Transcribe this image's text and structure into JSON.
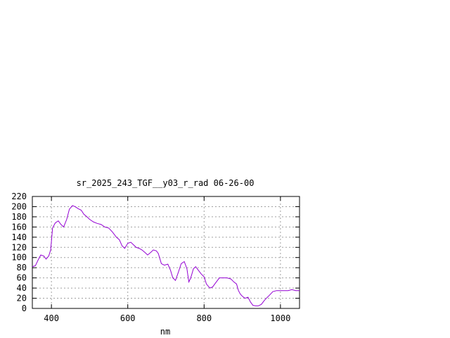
{
  "chart_data": {
    "type": "line",
    "title": "sr_2025_243_TGF__y03_r_rad 06-26-00",
    "xlabel": "nm",
    "ylabel": "",
    "xlim": [
      350,
      1050
    ],
    "ylim": [
      0,
      220
    ],
    "x_ticks": [
      400,
      600,
      800,
      1000
    ],
    "y_ticks": [
      0,
      20,
      40,
      60,
      80,
      100,
      120,
      140,
      160,
      180,
      200,
      220
    ],
    "grid": true,
    "legend": "none",
    "series": [
      {
        "color": "#9400d3",
        "x": [
          350,
          358,
          365,
          372,
          380,
          386,
          393,
          398,
          403,
          410,
          418,
          425,
          432,
          440,
          447,
          455,
          462,
          470,
          478,
          485,
          493,
          500,
          510,
          520,
          530,
          540,
          550,
          560,
          570,
          578,
          585,
          592,
          600,
          608,
          615,
          622,
          630,
          637,
          645,
          652,
          660,
          667,
          675,
          680,
          688,
          696,
          705,
          712,
          718,
          725,
          732,
          740,
          748,
          755,
          760,
          765,
          772,
          778,
          785,
          792,
          800,
          806,
          815,
          822,
          830,
          840,
          850,
          860,
          870,
          878,
          885,
          890,
          895,
          900,
          907,
          915,
          922,
          928,
          935,
          942,
          950,
          957,
          963,
          970,
          980,
          990,
          1000,
          1010,
          1020,
          1030,
          1040,
          1050
        ],
        "y": [
          82,
          84,
          95,
          105,
          103,
          97,
          103,
          115,
          158,
          168,
          172,
          165,
          160,
          175,
          195,
          202,
          200,
          196,
          193,
          185,
          180,
          175,
          170,
          167,
          165,
          160,
          158,
          150,
          140,
          135,
          123,
          118,
          128,
          130,
          125,
          120,
          118,
          115,
          110,
          105,
          110,
          115,
          113,
          108,
          88,
          85,
          87,
          75,
          60,
          55,
          70,
          88,
          92,
          78,
          52,
          60,
          78,
          82,
          75,
          68,
          62,
          48,
          40,
          42,
          50,
          60,
          60,
          60,
          58,
          52,
          48,
          35,
          28,
          24,
          20,
          22,
          12,
          6,
          5,
          5,
          8,
          15,
          20,
          25,
          33,
          35,
          35,
          35,
          35,
          37,
          35,
          35
        ]
      }
    ]
  }
}
